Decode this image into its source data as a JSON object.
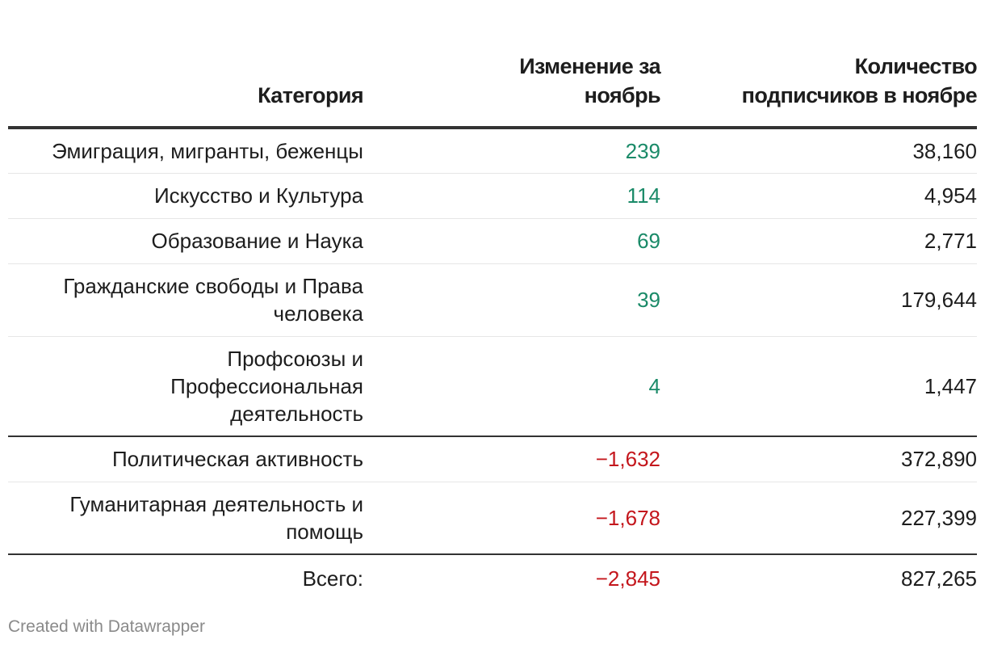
{
  "chart_data": {
    "type": "table",
    "columns": [
      "Категория",
      "Изменение за ноябрь",
      "Количество подписчиков в ноябре"
    ],
    "rows": [
      {
        "category": "Эмиграция, мигранты, беженцы",
        "change": "239",
        "subscribers": "38,160",
        "trend": "up"
      },
      {
        "category": "Искусство и Культура",
        "change": "114",
        "subscribers": "4,954",
        "trend": "up"
      },
      {
        "category": "Образование и Наука",
        "change": "69",
        "subscribers": "2,771",
        "trend": "up"
      },
      {
        "category": "Гражданские свободы и Права человека",
        "change": "39",
        "subscribers": "179,644",
        "trend": "up"
      },
      {
        "category": "Профсоюзы и Профессиональная деятельность",
        "change": "4",
        "subscribers": "1,447",
        "trend": "up"
      },
      {
        "category": "Политическая активность",
        "change": "−1,632",
        "subscribers": "372,890",
        "trend": "down"
      },
      {
        "category": "Гуманитарная деятельность и помощь",
        "change": "−1,678",
        "subscribers": "227,399",
        "trend": "down"
      },
      {
        "category": "Всего:",
        "change": "−2,845",
        "subscribers": "827,265",
        "trend": "down"
      }
    ],
    "colors": {
      "positive": "#1a8a68",
      "negative": "#c4161c"
    }
  },
  "footer": {
    "credit": "Created with Datawrapper"
  }
}
